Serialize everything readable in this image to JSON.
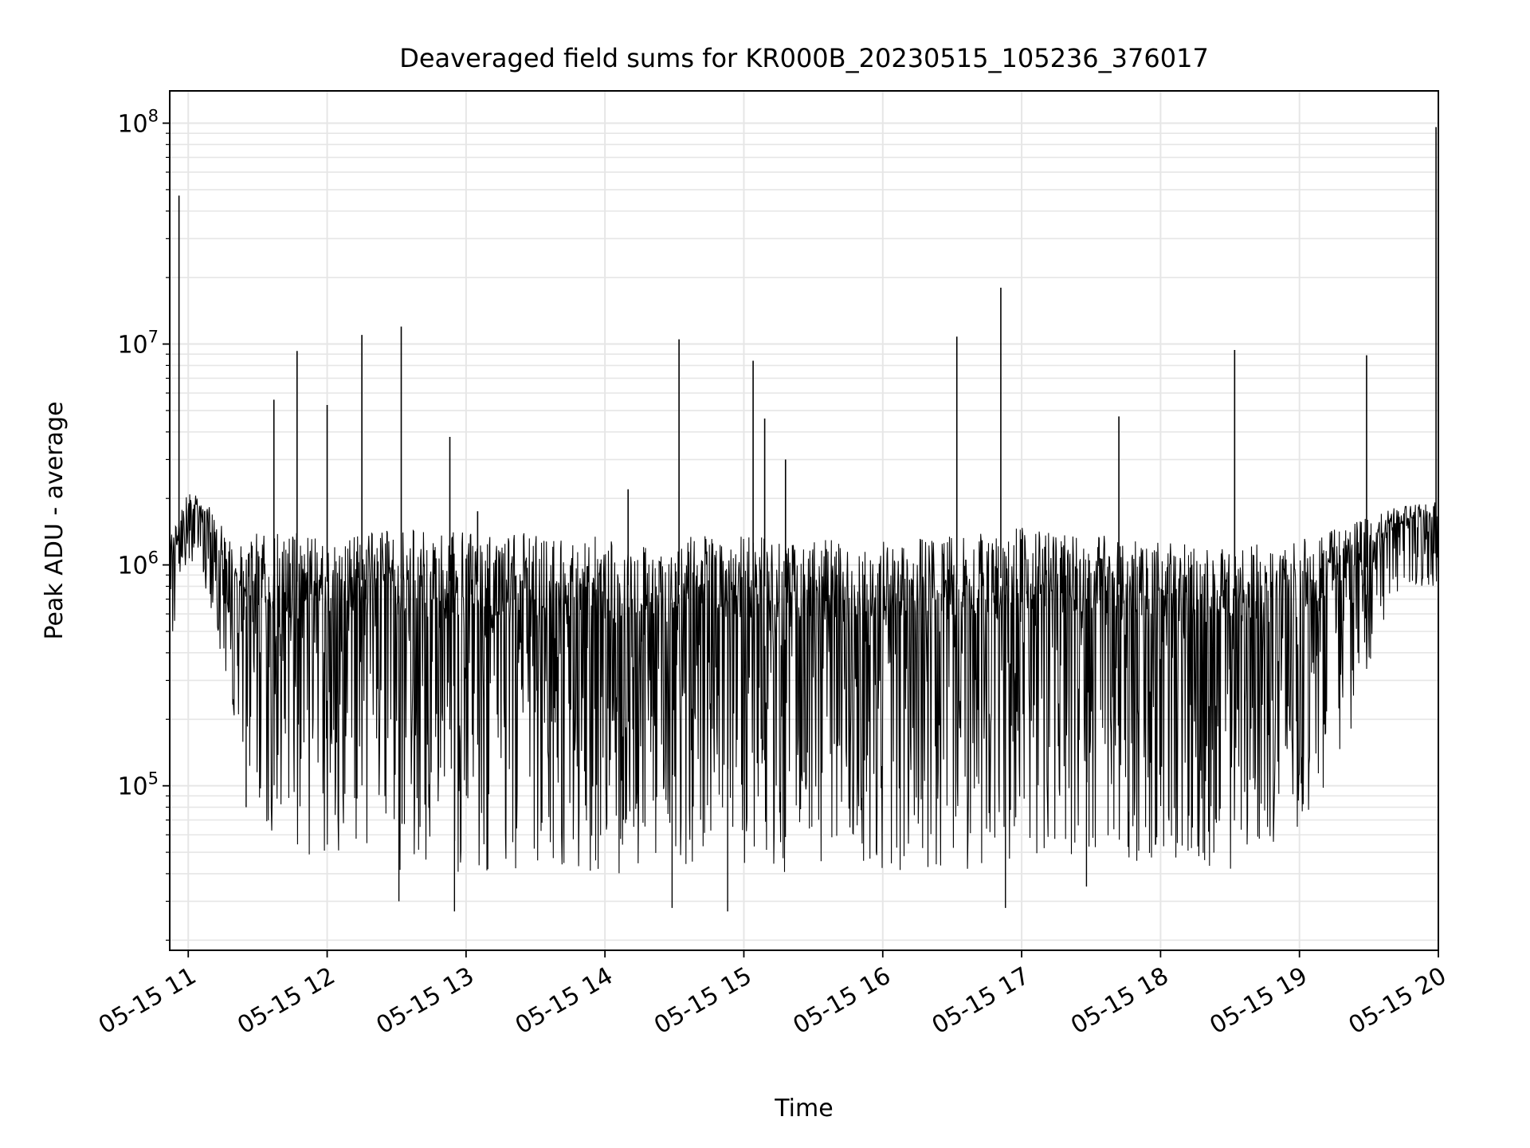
{
  "chart_data": {
    "type": "line",
    "title": "Deaveraged field sums for KR000B_20230515_105236_376017",
    "xlabel": "Time",
    "ylabel": "Peak ADU - average",
    "x_tick_labels": [
      "05-15 11",
      "05-15 12",
      "05-15 13",
      "05-15 14",
      "05-15 15",
      "05-15 16",
      "05-15 17",
      "05-15 18",
      "05-15 19",
      "05-15 20"
    ],
    "y_tick_labels": [
      {
        "base": "10",
        "exp": "5"
      },
      {
        "base": "10",
        "exp": "6"
      },
      {
        "base": "10",
        "exp": "7"
      },
      {
        "base": "10",
        "exp": "8"
      }
    ],
    "xlim": [
      "2023-05-15 10:52",
      "2023-05-15 20:00"
    ],
    "ylim": [
      18000,
      140000000
    ],
    "yscale": "log",
    "grid": true,
    "line_color": "#000000",
    "grid_color": "#e6e6e6",
    "series": [
      {
        "values_description_free": true,
        "envelope": {
          "x": [
            "2023-05-15 10:52",
            "2023-05-15 11:00",
            "2023-05-15 11:10",
            "2023-05-15 11:20",
            "2023-05-15 11:30",
            "2023-05-15 11:45",
            "2023-05-15 12:00",
            "2023-05-15 12:30",
            "2023-05-15 13:00",
            "2023-05-15 13:30",
            "2023-05-15 14:00",
            "2023-05-15 14:30",
            "2023-05-15 15:00",
            "2023-05-15 15:30",
            "2023-05-15 16:00",
            "2023-05-15 16:30",
            "2023-05-15 17:00",
            "2023-05-15 17:30",
            "2023-05-15 18:00",
            "2023-05-15 18:30",
            "2023-05-15 19:00",
            "2023-05-15 19:20",
            "2023-05-15 19:40",
            "2023-05-15 20:00"
          ],
          "upper": [
            1300000,
            2200000,
            1800000,
            1200000,
            1400000,
            1400000,
            1400000,
            1450000,
            1400000,
            1400000,
            1350000,
            1350000,
            1350000,
            1300000,
            1300000,
            1350000,
            1500000,
            1400000,
            1300000,
            1200000,
            1300000,
            1500000,
            1800000,
            2000000
          ],
          "lower": [
            400000,
            1100000,
            600000,
            200000,
            60000,
            50000,
            45000,
            40000,
            40000,
            42000,
            40000,
            40000,
            40000,
            40000,
            42000,
            40000,
            45000,
            45000,
            45000,
            40000,
            60000,
            150000,
            700000,
            800000
          ]
        },
        "spikes": [
          {
            "x": "2023-05-15 10:56",
            "y": 47000000
          },
          {
            "x": "2023-05-15 11:37",
            "y": 5600000
          },
          {
            "x": "2023-05-15 11:47",
            "y": 9300000
          },
          {
            "x": "2023-05-15 12:00",
            "y": 5300000
          },
          {
            "x": "2023-05-15 12:15",
            "y": 11000000
          },
          {
            "x": "2023-05-15 12:32",
            "y": 12000000
          },
          {
            "x": "2023-05-15 12:53",
            "y": 3800000
          },
          {
            "x": "2023-05-15 13:05",
            "y": 1750000
          },
          {
            "x": "2023-05-15 14:10",
            "y": 2200000
          },
          {
            "x": "2023-05-15 14:32",
            "y": 10500000
          },
          {
            "x": "2023-05-15 15:04",
            "y": 8400000
          },
          {
            "x": "2023-05-15 15:09",
            "y": 4600000
          },
          {
            "x": "2023-05-15 15:18",
            "y": 3000000
          },
          {
            "x": "2023-05-15 16:32",
            "y": 10800000
          },
          {
            "x": "2023-05-15 16:51",
            "y": 18000000
          },
          {
            "x": "2023-05-15 17:42",
            "y": 4700000
          },
          {
            "x": "2023-05-15 18:32",
            "y": 9400000
          },
          {
            "x": "2023-05-15 19:29",
            "y": 8900000
          },
          {
            "x": "2023-05-15 19:59",
            "y": 96000000
          }
        ],
        "dips": [
          {
            "x": "2023-05-15 11:25",
            "y": 80000
          },
          {
            "x": "2023-05-15 12:31",
            "y": 30000
          },
          {
            "x": "2023-05-15 12:55",
            "y": 27000
          },
          {
            "x": "2023-05-15 14:29",
            "y": 28000
          },
          {
            "x": "2023-05-15 14:53",
            "y": 27000
          },
          {
            "x": "2023-05-15 16:53",
            "y": 28000
          },
          {
            "x": "2023-05-15 17:28",
            "y": 35000
          }
        ]
      }
    ]
  }
}
